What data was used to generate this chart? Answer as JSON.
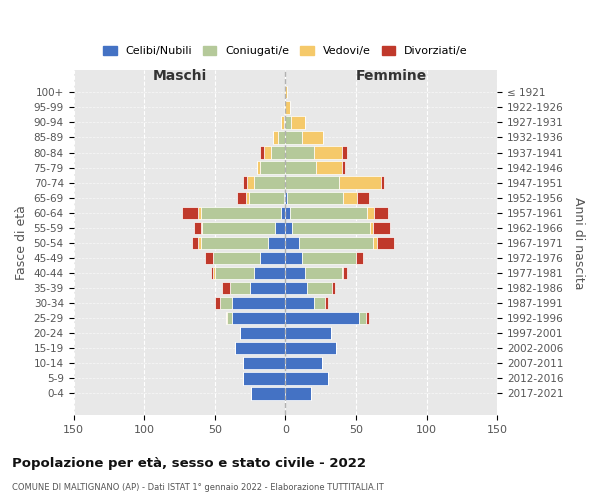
{
  "age_groups": [
    "0-4",
    "5-9",
    "10-14",
    "15-19",
    "20-24",
    "25-29",
    "30-34",
    "35-39",
    "40-44",
    "45-49",
    "50-54",
    "55-59",
    "60-64",
    "65-69",
    "70-74",
    "75-79",
    "80-84",
    "85-89",
    "90-94",
    "95-99",
    "100+"
  ],
  "birth_years": [
    "2017-2021",
    "2012-2016",
    "2007-2011",
    "2002-2006",
    "1997-2001",
    "1992-1996",
    "1987-1991",
    "1982-1986",
    "1977-1981",
    "1972-1976",
    "1967-1971",
    "1962-1966",
    "1957-1961",
    "1952-1956",
    "1947-1951",
    "1942-1946",
    "1937-1941",
    "1932-1936",
    "1927-1931",
    "1922-1926",
    "≤ 1921"
  ],
  "maschi": {
    "celibi": [
      24,
      30,
      30,
      36,
      32,
      38,
      38,
      25,
      22,
      18,
      12,
      7,
      3,
      1,
      0,
      0,
      0,
      0,
      0,
      0,
      0
    ],
    "coniugati": [
      0,
      0,
      0,
      0,
      0,
      3,
      8,
      14,
      28,
      33,
      48,
      52,
      57,
      25,
      22,
      18,
      10,
      5,
      1,
      0,
      0
    ],
    "vedovi": [
      0,
      0,
      0,
      0,
      0,
      1,
      0,
      0,
      1,
      0,
      2,
      1,
      2,
      2,
      5,
      2,
      5,
      4,
      2,
      1,
      0
    ],
    "divorziati": [
      0,
      0,
      0,
      0,
      0,
      0,
      4,
      6,
      2,
      6,
      4,
      5,
      11,
      6,
      3,
      0,
      3,
      0,
      0,
      0,
      0
    ]
  },
  "femmine": {
    "nubili": [
      18,
      30,
      26,
      36,
      32,
      52,
      20,
      15,
      14,
      12,
      10,
      5,
      3,
      1,
      0,
      0,
      0,
      0,
      0,
      0,
      0
    ],
    "coniugate": [
      0,
      0,
      0,
      0,
      0,
      5,
      8,
      18,
      26,
      38,
      52,
      55,
      55,
      40,
      38,
      22,
      20,
      12,
      4,
      0,
      0
    ],
    "vedove": [
      0,
      0,
      0,
      0,
      0,
      0,
      0,
      0,
      1,
      0,
      3,
      2,
      5,
      10,
      30,
      18,
      20,
      15,
      10,
      3,
      1
    ],
    "divorziate": [
      0,
      0,
      0,
      0,
      0,
      2,
      2,
      2,
      3,
      5,
      12,
      12,
      10,
      8,
      2,
      2,
      4,
      0,
      0,
      0,
      0
    ]
  },
  "colors": {
    "celibi_nubili": "#4472c4",
    "coniugati": "#b5c99a",
    "vedovi": "#f5c96a",
    "divorziati": "#c0392b"
  },
  "title": "Popolazione per età, sesso e stato civile - 2022",
  "subtitle": "COMUNE DI MALTIGNANO (AP) - Dati ISTAT 1° gennaio 2022 - Elaborazione TUTTITALIA.IT",
  "xlabel_left": "Maschi",
  "xlabel_right": "Femmine",
  "ylabel_left": "Fasce di età",
  "ylabel_right": "Anni di nascita",
  "xlim": 150,
  "bg_color": "#ffffff",
  "plot_bg_color": "#e8e8e8",
  "legend_labels": [
    "Celibi/Nubili",
    "Coniugati/e",
    "Vedovi/e",
    "Divorziati/e"
  ]
}
